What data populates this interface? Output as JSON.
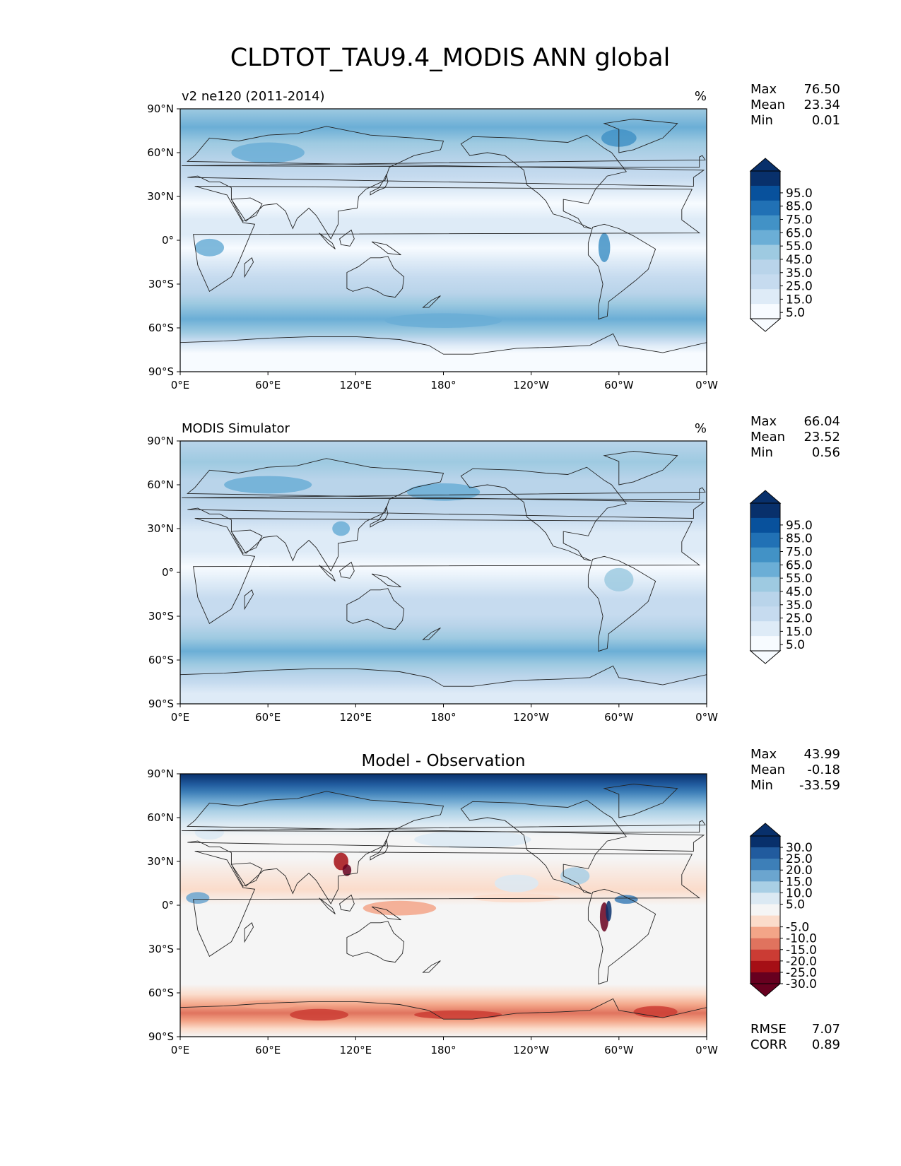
{
  "title": "CLDTOT_TAU9.4_MODIS ANN global",
  "colors": {
    "blues": [
      "#f7fbff",
      "#deebf7",
      "#c6dbef",
      "#b9d4ea",
      "#9ecae1",
      "#6baed6",
      "#4292c6",
      "#2171b5",
      "#08519c",
      "#08306b"
    ],
    "diff": [
      "#67001f",
      "#a50f15",
      "#cb3c34",
      "#e0735e",
      "#f3a588",
      "#fbdccb",
      "#f5f5f5",
      "#dbe9f3",
      "#a9cfe5",
      "#6ba5cf",
      "#3d7fb8",
      "#215b9e",
      "#08306b"
    ]
  },
  "axes": {
    "lat_labels": [
      "90°N",
      "60°N",
      "30°N",
      "0°",
      "30°S",
      "60°S",
      "90°S"
    ],
    "lon_labels": [
      "0°E",
      "60°E",
      "120°E",
      "180°",
      "120°W",
      "60°W",
      "0°W"
    ]
  },
  "panels": [
    {
      "id": "test",
      "left_title": "v2 ne120 (2011-2014)",
      "center_title": "",
      "units": "%",
      "stats": [
        {
          "label": "Max",
          "value": "76.50"
        },
        {
          "label": "Mean",
          "value": "23.34"
        },
        {
          "label": "Min",
          "value": "0.01"
        }
      ],
      "colorbar_ticks": [
        "95.0",
        "85.0",
        "75.0",
        "65.0",
        "55.0",
        "45.0",
        "35.0",
        "25.0",
        "15.0",
        "5.0"
      ],
      "extra_stats": []
    },
    {
      "id": "ref",
      "left_title": "MODIS Simulator",
      "center_title": "",
      "units": "%",
      "stats": [
        {
          "label": "Max",
          "value": "66.04"
        },
        {
          "label": "Mean",
          "value": "23.52"
        },
        {
          "label": "Min",
          "value": "0.56"
        }
      ],
      "colorbar_ticks": [
        "95.0",
        "85.0",
        "75.0",
        "65.0",
        "55.0",
        "45.0",
        "35.0",
        "25.0",
        "15.0",
        "5.0"
      ],
      "extra_stats": []
    },
    {
      "id": "diff",
      "left_title": "",
      "center_title": "Model - Observation",
      "units": "",
      "stats": [
        {
          "label": "Max",
          "value": "43.99"
        },
        {
          "label": "Mean",
          "value": "-0.18"
        },
        {
          "label": "Min",
          "value": "-33.59"
        }
      ],
      "colorbar_ticks": [
        "30.0",
        "25.0",
        "20.0",
        "15.0",
        "10.0",
        "5.0",
        "-5.0",
        "-10.0",
        "-15.0",
        "-20.0",
        "-25.0",
        "-30.0"
      ],
      "extra_stats": [
        {
          "label": "RMSE",
          "value": "7.07"
        },
        {
          "label": "CORR",
          "value": "0.89"
        }
      ]
    }
  ]
}
